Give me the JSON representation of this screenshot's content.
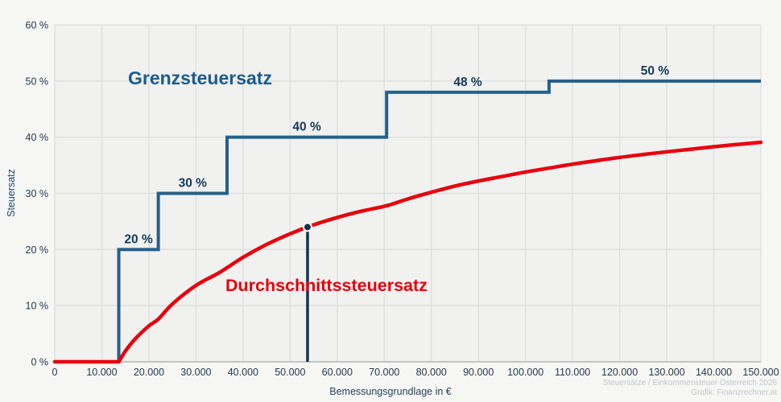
{
  "attribution": {
    "line1": "Steuersätze / Einkommensteuer Österreich 2026",
    "line2": "Grafik: Finanzrechner.at"
  },
  "colors": {
    "background": "#f6f6f4",
    "plot_background": "#f1f1ef",
    "gridline": "#dcdedf",
    "axis_line": "#b3b7ba",
    "tick_text": "#26384a",
    "step_label_text": "#133a5a",
    "marginal_line": "#256089",
    "marginal_label": "#1d5c8e",
    "average_line": "#e8000d",
    "marker": "#12344f",
    "attribution_text": "#c1c6cb"
  },
  "axes": {
    "y_ticks": [
      "0 %",
      "10 %",
      "20 %",
      "30 %",
      "40 %",
      "50 %",
      "60 %"
    ],
    "x_ticks": [
      "0",
      "10.000",
      "20.000",
      "30.000",
      "40.000",
      "50.000",
      "60.000",
      "70.000",
      "80.000",
      "90.000",
      "100.000",
      "110.000",
      "120.000",
      "130.000",
      "140.000",
      "150.000"
    ]
  },
  "chart_data": {
    "type": "line",
    "title": "",
    "xlabel": "Bemessungsgrundlage in €",
    "ylabel": "Steuersatz",
    "xlim": [
      0,
      150000
    ],
    "ylim": [
      0,
      60
    ],
    "x_tick_interval": 10000,
    "y_tick_interval": 10,
    "grid": true,
    "legend": "inline-text-labels",
    "series": [
      {
        "name": "Grenzsteuersatz",
        "style": "step",
        "color": "#256089",
        "brackets": [
          {
            "from": 0,
            "to": 13600,
            "rate": 0,
            "label": ""
          },
          {
            "from": 13600,
            "to": 22000,
            "rate": 20,
            "label": "20 %"
          },
          {
            "from": 22000,
            "to": 36600,
            "rate": 30,
            "label": "30 %"
          },
          {
            "from": 36600,
            "to": 70500,
            "rate": 40,
            "label": "40 %"
          },
          {
            "from": 70500,
            "to": 105000,
            "rate": 48,
            "label": "48 %"
          },
          {
            "from": 105000,
            "to": 150000,
            "rate": 50,
            "label": "50 %"
          }
        ]
      },
      {
        "name": "Durchschnittssteuersatz",
        "style": "smooth",
        "color": "#e8000d",
        "points": [
          [
            0,
            0
          ],
          [
            13600,
            0
          ],
          [
            15000,
            1.9
          ],
          [
            17000,
            4.0
          ],
          [
            20000,
            6.4
          ],
          [
            22000,
            7.6
          ],
          [
            25000,
            10.3
          ],
          [
            30000,
            13.6
          ],
          [
            35000,
            15.9
          ],
          [
            40000,
            18.6
          ],
          [
            45000,
            20.9
          ],
          [
            50000,
            22.8
          ],
          [
            55000,
            24.4
          ],
          [
            60000,
            25.7
          ],
          [
            65000,
            26.8
          ],
          [
            70500,
            27.8
          ],
          [
            75000,
            29.0
          ],
          [
            80000,
            30.2
          ],
          [
            85000,
            31.3
          ],
          [
            90000,
            32.2
          ],
          [
            95000,
            33.0
          ],
          [
            100000,
            33.8
          ],
          [
            105000,
            34.5
          ],
          [
            110000,
            35.2
          ],
          [
            120000,
            36.4
          ],
          [
            130000,
            37.4
          ],
          [
            140000,
            38.3
          ],
          [
            150000,
            39.1
          ]
        ]
      }
    ],
    "marker": {
      "x": 53700,
      "y": 24
    }
  }
}
